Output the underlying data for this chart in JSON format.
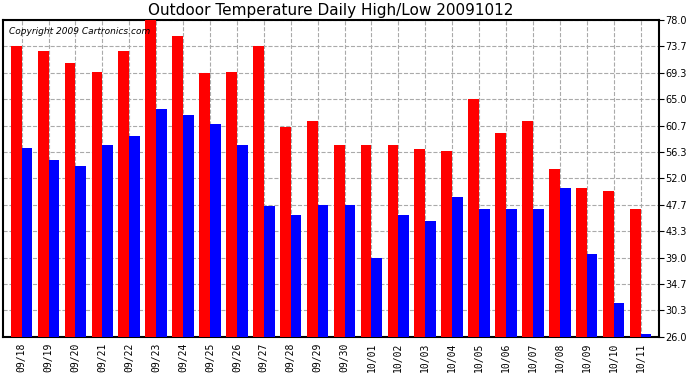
{
  "title": "Outdoor Temperature Daily High/Low 20091012",
  "copyright": "Copyright 2009 Cartronics.com",
  "dates": [
    "09/18",
    "09/19",
    "09/20",
    "09/21",
    "09/22",
    "09/23",
    "09/24",
    "09/25",
    "09/26",
    "09/27",
    "09/28",
    "09/29",
    "09/30",
    "10/01",
    "10/02",
    "10/03",
    "10/04",
    "10/05",
    "10/06",
    "10/07",
    "10/08",
    "10/09",
    "10/10",
    "10/11"
  ],
  "highs": [
    73.7,
    73.0,
    71.0,
    69.5,
    73.0,
    78.0,
    75.5,
    69.3,
    69.5,
    73.7,
    60.5,
    61.5,
    57.5,
    57.5,
    57.5,
    56.8,
    56.5,
    65.0,
    59.5,
    61.5,
    53.5,
    50.5,
    50.0,
    47.0
  ],
  "lows": [
    57.0,
    55.0,
    54.0,
    57.5,
    59.0,
    63.5,
    62.5,
    61.0,
    57.5,
    47.5,
    46.0,
    47.7,
    47.7,
    39.0,
    46.0,
    45.0,
    49.0,
    47.0,
    47.0,
    47.0,
    50.5,
    39.5,
    31.5,
    26.5
  ],
  "high_color": "#ff0000",
  "low_color": "#0000ff",
  "bg_color": "#ffffff",
  "plot_bg_color": "#ffffff",
  "grid_color": "#aaaaaa",
  "title_fontsize": 11,
  "yticks": [
    26.0,
    30.3,
    34.7,
    39.0,
    43.3,
    47.7,
    52.0,
    56.3,
    60.7,
    65.0,
    69.3,
    73.7,
    78.0
  ],
  "ymin": 26.0,
  "ymax": 78.0
}
